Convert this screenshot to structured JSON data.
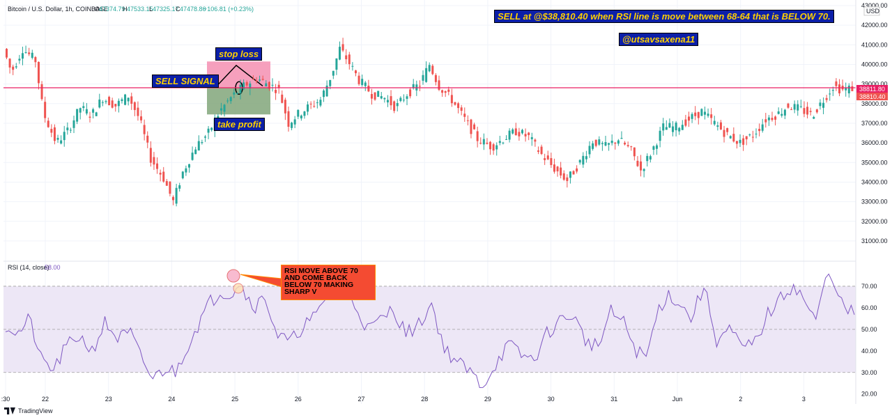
{
  "header": {
    "symbol": "Bitcoin / U.S. Dollar, 1h, COINBASE",
    "open_label": "O",
    "open": "47374.79",
    "high_label": "H",
    "high": "47533.15",
    "low_label": "L",
    "low": "47325.17",
    "close_label": "C",
    "close": "47478.86",
    "change": "+106.81 (+0.23%)"
  },
  "rsi_header": {
    "label": "RSI (14, close)",
    "value": "58.00"
  },
  "currency": "USD",
  "price_tags": {
    "upper": "38811.80",
    "lower": "38810.40"
  },
  "annotations": {
    "sell_note": "SELL at @$38,810.40 when RSI line is move between 68-64 that is BELOW 70.",
    "author": "@utsavsaxena11",
    "stop_loss": "stop loss",
    "sell_signal": "SELL SIGNAL",
    "take_profit": "take profit",
    "rsi_callout": "RSI MOVE ABOVE 70 AND COME BACK BELOW 70 MAKING SHARP V"
  },
  "branding": {
    "logo_text": "TradingView"
  },
  "colors": {
    "up": "#26a69a",
    "down": "#ef5350",
    "rsi_line": "#7e57c2",
    "rsi_band": "#ede7f6",
    "horizontal_line": "#e91e63",
    "stop_zone": "#f48fb1",
    "profit_zone": "#81a67a",
    "note_bg": "#0c1fa8",
    "note_text": "#ffd000",
    "callout_bg": "#f44b32"
  },
  "chart_data": [
    {
      "type": "candlestick",
      "title": "",
      "interval": "1h",
      "x_ticks": [
        ":30",
        "22",
        "23",
        "24",
        "25",
        "26",
        "27",
        "28",
        "29",
        "30",
        "31",
        "Jun",
        "2",
        "3"
      ],
      "y_ticks": [
        "43000.00",
        "42000.00",
        "41000.00",
        "40000.00",
        "39000.00",
        "38000.00",
        "37000.00",
        "36000.00",
        "35000.00",
        "34000.00",
        "33000.00",
        "32000.00",
        "31000.00"
      ],
      "ylim": [
        30500,
        43000
      ],
      "horizontal_line": 38810.4,
      "trade_zone": {
        "stop_loss_top": 40150,
        "entry": 38810,
        "take_profit_bottom": 37450
      },
      "price_path": [
        [
          0,
          40800
        ],
        [
          5,
          39600
        ],
        [
          12,
          40800
        ],
        [
          20,
          40200
        ],
        [
          25,
          37500
        ],
        [
          33,
          36000
        ],
        [
          40,
          36600
        ],
        [
          48,
          37800
        ],
        [
          55,
          37400
        ],
        [
          62,
          38300
        ],
        [
          70,
          37900
        ],
        [
          78,
          38400
        ],
        [
          85,
          37200
        ],
        [
          92,
          35200
        ],
        [
          100,
          34200
        ],
        [
          106,
          33000
        ],
        [
          112,
          34500
        ],
        [
          120,
          35800
        ],
        [
          128,
          36500
        ],
        [
          135,
          37600
        ],
        [
          142,
          38300
        ],
        [
          150,
          38900
        ],
        [
          158,
          39300
        ],
        [
          165,
          39000
        ],
        [
          172,
          38700
        ],
        [
          178,
          37000
        ],
        [
          183,
          37400
        ],
        [
          190,
          37800
        ],
        [
          198,
          38200
        ],
        [
          205,
          39500
        ],
        [
          210,
          40800
        ],
        [
          215,
          40200
        ],
        [
          222,
          39200
        ],
        [
          230,
          38500
        ],
        [
          238,
          38300
        ],
        [
          245,
          37800
        ],
        [
          252,
          38500
        ],
        [
          260,
          39000
        ],
        [
          266,
          40000
        ],
        [
          272,
          38900
        ],
        [
          280,
          38200
        ],
        [
          288,
          37200
        ],
        [
          296,
          36200
        ],
        [
          305,
          35800
        ],
        [
          312,
          36200
        ],
        [
          320,
          36600
        ],
        [
          328,
          36300
        ],
        [
          336,
          35400
        ],
        [
          345,
          34600
        ],
        [
          352,
          34100
        ],
        [
          360,
          35000
        ],
        [
          368,
          36100
        ],
        [
          376,
          35800
        ],
        [
          384,
          36200
        ],
        [
          392,
          35600
        ],
        [
          398,
          34600
        ],
        [
          405,
          35600
        ],
        [
          412,
          36800
        ],
        [
          420,
          36800
        ],
        [
          428,
          37200
        ],
        [
          436,
          37600
        ],
        [
          444,
          37000
        ],
        [
          452,
          36400
        ],
        [
          460,
          36000
        ],
        [
          468,
          36400
        ],
        [
          476,
          37200
        ],
        [
          484,
          37500
        ],
        [
          490,
          37900
        ],
        [
          498,
          37700
        ],
        [
          505,
          37400
        ],
        [
          512,
          38200
        ],
        [
          518,
          38900
        ],
        [
          524,
          38700
        ],
        [
          530,
          38800
        ]
      ]
    },
    {
      "type": "line",
      "name": "RSI (14, close)",
      "y_ticks": [
        "70.00",
        "60.00",
        "50.00",
        "40.00",
        "30.00",
        "20.00"
      ],
      "ylim": [
        17,
        80
      ],
      "band": [
        30,
        70
      ],
      "midline": 50,
      "last_value": 58.0,
      "path": [
        [
          0,
          52
        ],
        [
          8,
          48
        ],
        [
          15,
          55
        ],
        [
          22,
          36
        ],
        [
          30,
          31
        ],
        [
          38,
          42
        ],
        [
          46,
          47
        ],
        [
          54,
          40
        ],
        [
          62,
          53
        ],
        [
          70,
          46
        ],
        [
          78,
          48
        ],
        [
          85,
          36
        ],
        [
          92,
          27
        ],
        [
          100,
          32
        ],
        [
          106,
          30
        ],
        [
          112,
          40
        ],
        [
          120,
          52
        ],
        [
          128,
          63
        ],
        [
          135,
          68
        ],
        [
          140,
          66
        ],
        [
          146,
          72
        ],
        [
          150,
          66
        ],
        [
          156,
          61
        ],
        [
          162,
          65
        ],
        [
          170,
          47
        ],
        [
          178,
          44
        ],
        [
          186,
          52
        ],
        [
          194,
          56
        ],
        [
          202,
          67
        ],
        [
          210,
          71
        ],
        [
          218,
          62
        ],
        [
          226,
          50
        ],
        [
          234,
          54
        ],
        [
          242,
          60
        ],
        [
          250,
          48
        ],
        [
          258,
          52
        ],
        [
          266,
          62
        ],
        [
          274,
          41
        ],
        [
          282,
          35
        ],
        [
          290,
          30
        ],
        [
          298,
          24
        ],
        [
          306,
          34
        ],
        [
          314,
          43
        ],
        [
          322,
          38
        ],
        [
          330,
          36
        ],
        [
          338,
          48
        ],
        [
          346,
          54
        ],
        [
          354,
          57
        ],
        [
          362,
          45
        ],
        [
          370,
          42
        ],
        [
          378,
          58
        ],
        [
          386,
          53
        ],
        [
          394,
          40
        ],
        [
          400,
          37
        ],
        [
          408,
          60
        ],
        [
          414,
          66
        ],
        [
          420,
          63
        ],
        [
          428,
          55
        ],
        [
          436,
          70
        ],
        [
          444,
          45
        ],
        [
          452,
          50
        ],
        [
          460,
          41
        ],
        [
          468,
          44
        ],
        [
          476,
          57
        ],
        [
          484,
          64
        ],
        [
          492,
          71
        ],
        [
          500,
          62
        ],
        [
          506,
          53
        ],
        [
          512,
          74
        ],
        [
          518,
          72
        ],
        [
          524,
          58
        ],
        [
          530,
          58
        ]
      ]
    }
  ]
}
